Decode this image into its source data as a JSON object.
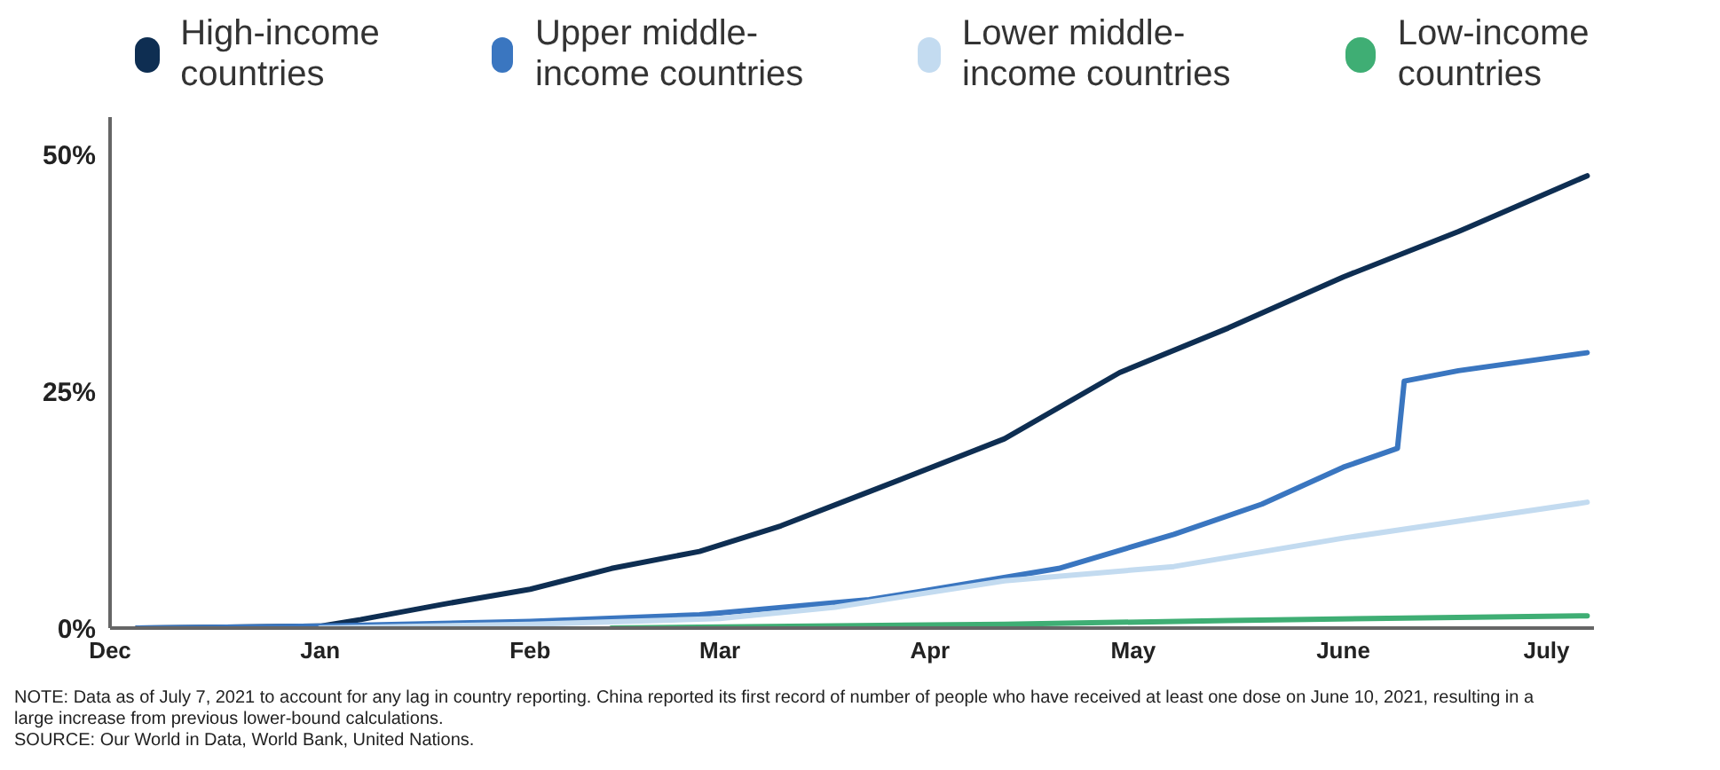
{
  "chart_data": {
    "type": "line",
    "legend": "top",
    "marker": "none",
    "line_style": "solid",
    "grid": false,
    "xlim": [
      "2020-12-01",
      "2021-07-08"
    ],
    "xticks": [
      {
        "value": "2020-12-01",
        "label": "Dec"
      },
      {
        "value": "2021-01-01",
        "label": "Jan"
      },
      {
        "value": "2021-02-01",
        "label": "Feb"
      },
      {
        "value": "2021-03-01",
        "label": "Mar"
      },
      {
        "value": "2021-04-01",
        "label": "Apr"
      },
      {
        "value": "2021-05-01",
        "label": "May"
      },
      {
        "value": "2021-06-01",
        "label": "June"
      },
      {
        "value": "2021-07-01",
        "label": "July"
      }
    ],
    "ylim": [
      0,
      54
    ],
    "yticks": [
      {
        "value": 0,
        "label": "0%"
      },
      {
        "value": 25,
        "label": "25%"
      },
      {
        "value": 50,
        "label": "50%"
      }
    ],
    "series": [
      {
        "name": "High-income countries",
        "color": "#0e2e52",
        "x": [
          "2020-12-05",
          "2021-01-01",
          "2021-01-07",
          "2021-01-19",
          "2021-02-01",
          "2021-02-13",
          "2021-02-26",
          "2021-03-10",
          "2021-03-23",
          "2021-04-12",
          "2021-04-29",
          "2021-05-15",
          "2021-06-01",
          "2021-06-18",
          "2021-07-07"
        ],
        "values": [
          0,
          0.2,
          0.9,
          2.5,
          4.1,
          6.3,
          8.1,
          10.8,
          14.4,
          20.0,
          27.0,
          31.7,
          37.1,
          41.9,
          47.8
        ]
      },
      {
        "name": "Upper middle-income countries",
        "color": "#3a76c0",
        "x": [
          "2020-12-05",
          "2021-01-01",
          "2021-02-01",
          "2021-02-26",
          "2021-03-23",
          "2021-03-30",
          "2021-04-20",
          "2021-05-07",
          "2021-05-20",
          "2021-06-01",
          "2021-06-09",
          "2021-06-10",
          "2021-06-18",
          "2021-07-07"
        ],
        "values": [
          0,
          0.2,
          0.7,
          1.4,
          3.0,
          3.8,
          6.3,
          9.9,
          13.1,
          17.0,
          19.0,
          26.1,
          27.2,
          29.1
        ]
      },
      {
        "name": "Lower middle-income countries",
        "color": "#c3dbf0",
        "x": [
          "2021-01-01",
          "2021-02-01",
          "2021-03-01",
          "2021-03-18",
          "2021-04-12",
          "2021-05-07",
          "2021-06-01",
          "2021-06-18",
          "2021-07-07"
        ],
        "values": [
          0,
          0.4,
          1.0,
          2.2,
          5.0,
          6.5,
          9.5,
          11.3,
          13.3
        ]
      },
      {
        "name": "Low-income countries",
        "color": "#3fae74",
        "x": [
          "2021-02-13",
          "2021-04-12",
          "2021-05-15",
          "2021-07-07"
        ],
        "values": [
          0,
          0.4,
          0.8,
          1.3
        ]
      }
    ],
    "annotations": [
      "NOTE: Data as of July 7, 2021 to account for any lag in country reporting. China reported its first record of number of people who have received at least one dose on June 10, 2021, resulting in a large increase from previous lower-bound calculations.",
      "SOURCE: Our World in Data, World Bank, United Nations."
    ]
  }
}
